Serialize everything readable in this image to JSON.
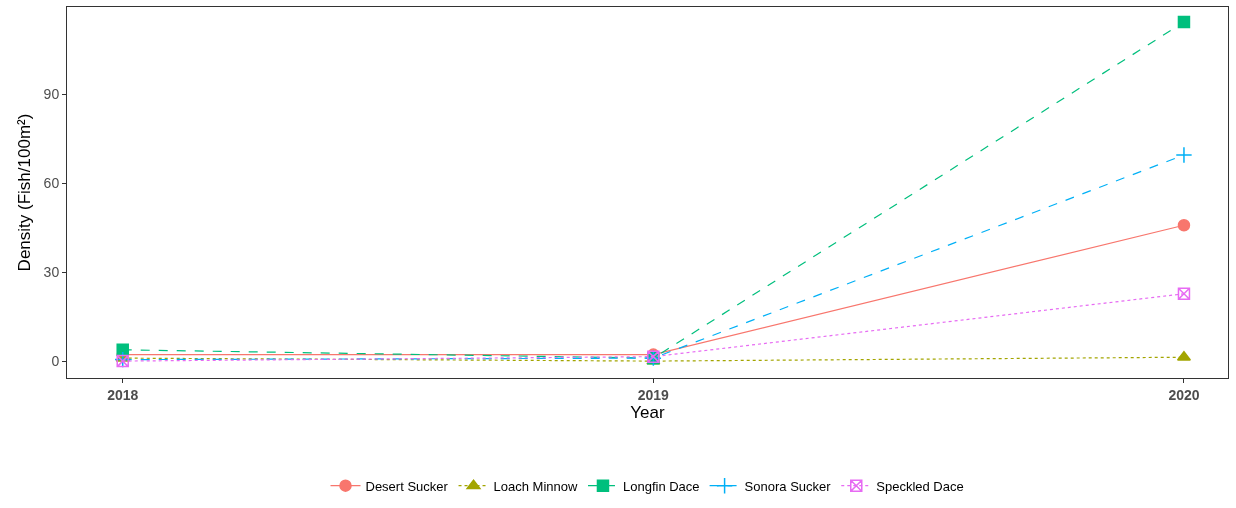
{
  "chart_data": {
    "type": "line",
    "xlabel": "Year",
    "ylabel": "Density (Fish/100m²)",
    "x": [
      2018,
      2019,
      2020
    ],
    "xlim": [
      2017.895,
      2020.083
    ],
    "xticks": [
      2018,
      2019,
      2020
    ],
    "ylim": [
      -5.7,
      119.4
    ],
    "yticks": [
      0,
      30,
      60,
      90
    ],
    "grid": false,
    "legend": "bottom",
    "series": [
      {
        "name": "Desert Sucker",
        "color": "#f8766d",
        "marker": "circle",
        "line_style": "solid",
        "values": [
          2.2,
          2.2,
          45.8
        ]
      },
      {
        "name": "Loach Minnow",
        "color": "#a3a500",
        "marker": "triangle",
        "line_style": "dotted",
        "values": [
          1,
          0,
          1.3
        ]
      },
      {
        "name": "Longfin Dace",
        "color": "#00bf7d",
        "marker": "square",
        "line_style": "dashed",
        "values": [
          3.8,
          1,
          114.3
        ]
      },
      {
        "name": "Sonora Sucker",
        "color": "#00b0f6",
        "marker": "cross",
        "line_style": "dashed",
        "values": [
          0.5,
          1,
          69.5
        ]
      },
      {
        "name": "Speckled Dace",
        "color": "#e76bf3",
        "marker": "cross",
        "line_style": "dotted",
        "values": [
          0,
          1.5,
          22.7
        ]
      }
    ]
  }
}
